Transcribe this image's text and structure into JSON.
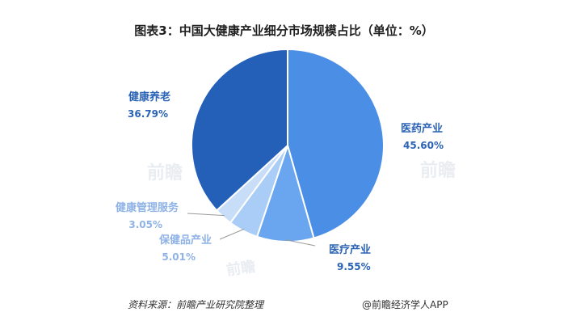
{
  "title": "图表3：中国大健康产业细分市场规模占比（单位：%）",
  "source": "资料来源：前瞻产业研究院整理",
  "credit": "@前瞻经济学人APP",
  "watermark": "前瞻",
  "chart_data": {
    "type": "pie",
    "title": "图表3：中国大健康产业细分市场规模占比（单位：%）",
    "unit": "%",
    "slices": [
      {
        "name": "医药产业",
        "value": 45.6,
        "label": "45.60%",
        "color": "#4a8ee6"
      },
      {
        "name": "医疗产业",
        "value": 9.55,
        "label": "9.55%",
        "color": "#6aa6ef"
      },
      {
        "name": "保健品产业",
        "value": 5.01,
        "label": "5.01%",
        "color": "#a9cdf6"
      },
      {
        "name": "健康管理服务",
        "value": 3.05,
        "label": "3.05%",
        "color": "#c8def8"
      },
      {
        "name": "健康养老",
        "value": 36.79,
        "label": "36.79%",
        "color": "#2460b8"
      }
    ],
    "label_color": "#2b63b5",
    "label_color_light": "#8fb3e6"
  }
}
